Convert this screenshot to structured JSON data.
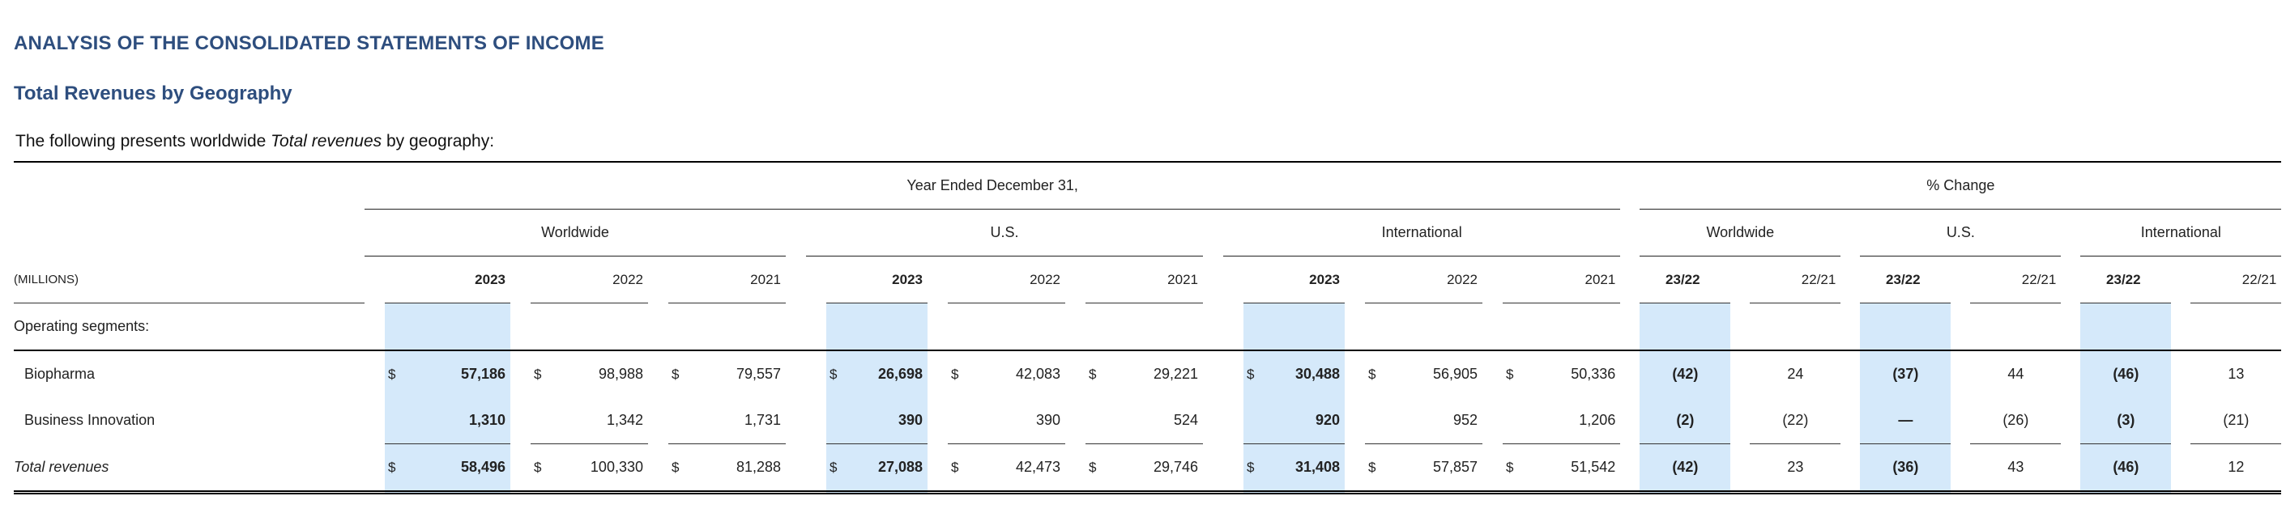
{
  "heading": "ANALYSIS OF THE CONSOLIDATED STATEMENTS OF INCOME",
  "subheading": "Total Revenues by Geography",
  "intro": {
    "before": "The following presents worldwide ",
    "emph": "Total revenues",
    "after": " by geography:"
  },
  "table": {
    "period_header": "Year Ended December 31,",
    "change_header": "% Change",
    "regions": [
      "Worldwide",
      "U.S.",
      "International"
    ],
    "unit_label": "(MILLIONS)",
    "years": [
      "2023",
      "2022",
      "2021"
    ],
    "change_periods": [
      "23/22",
      "22/21"
    ],
    "currency_symbol": "$",
    "section_label": "Operating segments:",
    "rows": [
      {
        "label": "Biopharma",
        "values": [
          "57,186",
          "98,988",
          "79,557",
          "26,698",
          "42,083",
          "29,221",
          "30,488",
          "56,905",
          "50,336"
        ],
        "changes": [
          "(42)",
          "24",
          "(37)",
          "44",
          "(46)",
          "13"
        ]
      },
      {
        "label": "Business Innovation",
        "values": [
          "1,310",
          "1,342",
          "1,731",
          "390",
          "390",
          "524",
          "920",
          "952",
          "1,206"
        ],
        "changes": [
          "(2)",
          "(22)",
          "—",
          "(26)",
          "(3)",
          "(21)"
        ]
      },
      {
        "label": "Total revenues",
        "values": [
          "58,496",
          "100,330",
          "81,288",
          "27,088",
          "42,473",
          "29,746",
          "31,408",
          "57,857",
          "51,542"
        ],
        "changes": [
          "(42)",
          "23",
          "(36)",
          "43",
          "(46)",
          "12"
        ]
      }
    ]
  },
  "colors": {
    "heading": "#2e4e7e",
    "highlight": "#d5e9fa"
  }
}
